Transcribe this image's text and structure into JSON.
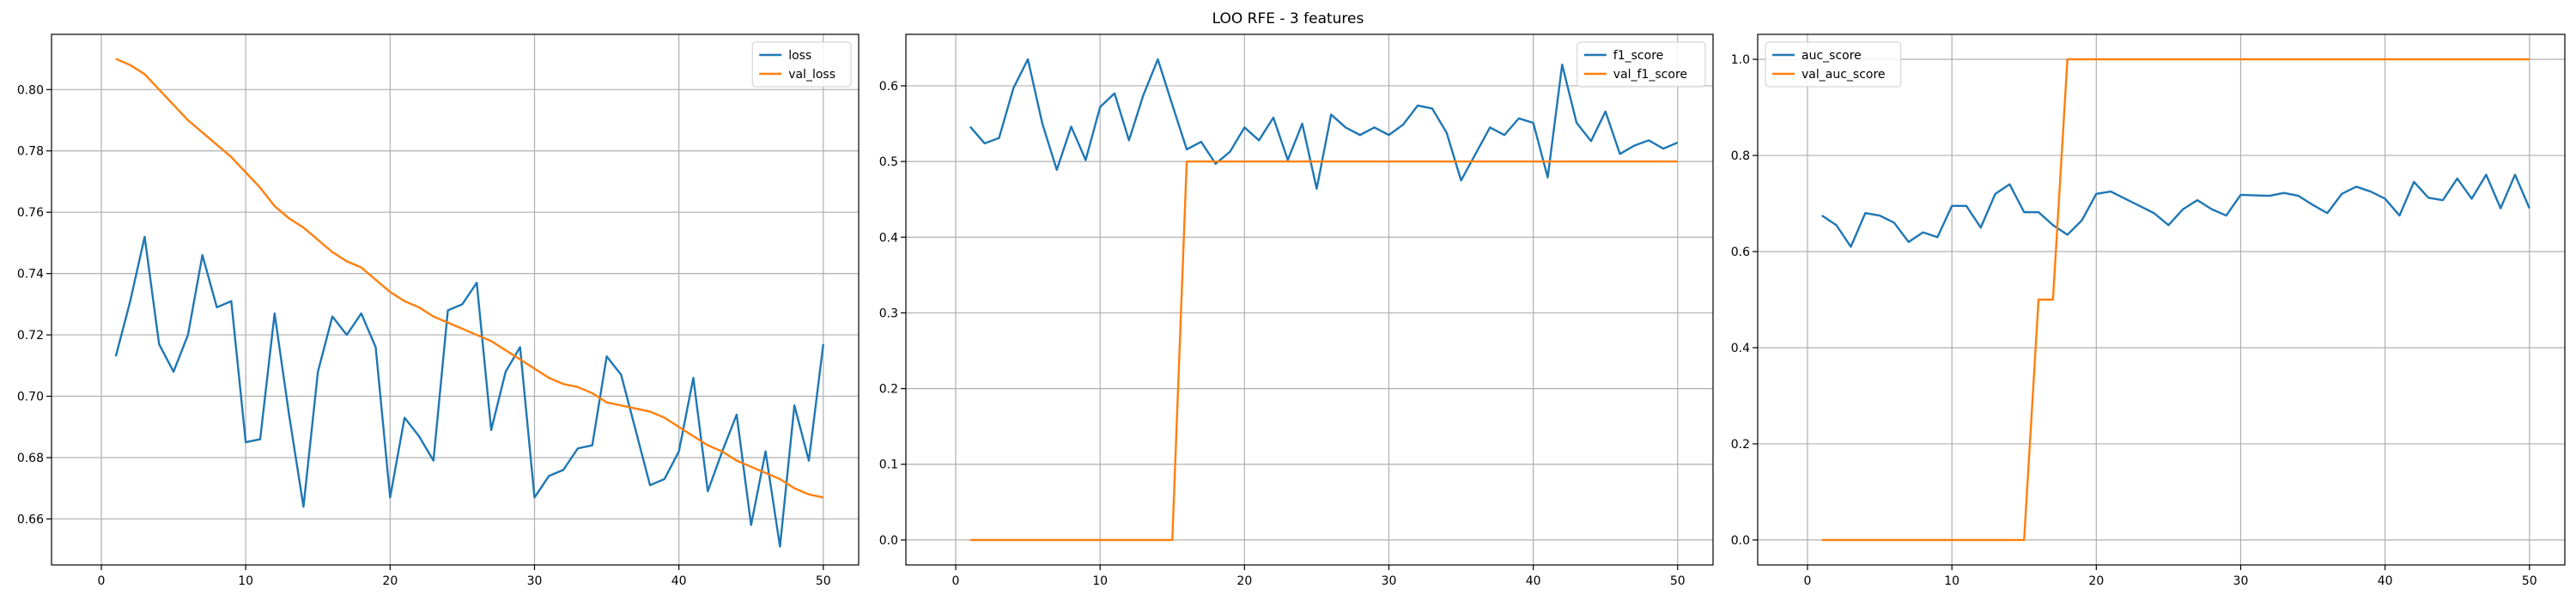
{
  "figure_title": "LOO RFE - 3 features",
  "colors": {
    "blue": "#1f77b4",
    "orange": "#ff7f0e",
    "grid": "#b0b0b0"
  },
  "chart_data": [
    {
      "type": "line",
      "grid": true,
      "legend": "top-right",
      "xlim": [
        -3.45,
        52.45
      ],
      "ylim": [
        0.645,
        0.818
      ],
      "xticks": [
        0,
        10,
        20,
        30,
        40,
        50
      ],
      "yticks": [
        0.66,
        0.68,
        0.7,
        0.72,
        0.74,
        0.76,
        0.78,
        0.8
      ],
      "ytick_labels": [
        "0.66",
        "0.68",
        "0.70",
        "0.72",
        "0.74",
        "0.76",
        "0.78",
        "0.80"
      ],
      "x": [
        1,
        2,
        3,
        4,
        5,
        6,
        7,
        8,
        9,
        10,
        11,
        12,
        13,
        14,
        15,
        16,
        17,
        18,
        19,
        20,
        21,
        22,
        23,
        24,
        25,
        26,
        27,
        28,
        29,
        30,
        31,
        32,
        33,
        34,
        35,
        36,
        37,
        38,
        39,
        40,
        41,
        42,
        43,
        44,
        45,
        46,
        47,
        48,
        49,
        50
      ],
      "series": [
        {
          "name": "loss",
          "color": "#1f77b4",
          "values": [
            0.713,
            0.731,
            0.752,
            0.717,
            0.708,
            0.72,
            0.746,
            0.729,
            0.731,
            0.685,
            0.686,
            0.727,
            0.694,
            0.664,
            0.708,
            0.726,
            0.72,
            0.727,
            0.716,
            0.667,
            0.693,
            0.687,
            0.679,
            0.728,
            0.73,
            0.737,
            0.689,
            0.708,
            0.716,
            0.667,
            0.674,
            0.676,
            0.683,
            0.684,
            0.713,
            0.707,
            0.689,
            0.671,
            0.673,
            0.682,
            0.706,
            0.669,
            0.682,
            0.694,
            0.658,
            0.682,
            0.651,
            0.697,
            0.679,
            0.717
          ]
        },
        {
          "name": "val_loss",
          "color": "#ff7f0e",
          "values": [
            0.81,
            0.808,
            0.805,
            0.8,
            0.795,
            0.79,
            0.786,
            0.782,
            0.778,
            0.773,
            0.768,
            0.762,
            0.758,
            0.755,
            0.751,
            0.747,
            0.744,
            0.742,
            0.738,
            0.734,
            0.731,
            0.729,
            0.726,
            0.724,
            0.722,
            0.72,
            0.718,
            0.715,
            0.712,
            0.709,
            0.706,
            0.704,
            0.703,
            0.701,
            0.698,
            0.697,
            0.696,
            0.695,
            0.693,
            0.69,
            0.687,
            0.684,
            0.682,
            0.679,
            0.677,
            0.675,
            0.673,
            0.67,
            0.668,
            0.667
          ]
        }
      ]
    },
    {
      "type": "line",
      "grid": true,
      "legend": "top-right",
      "xlim": [
        -3.45,
        52.45
      ],
      "ylim": [
        -0.033,
        0.668
      ],
      "xticks": [
        0,
        10,
        20,
        30,
        40,
        50
      ],
      "yticks": [
        0.0,
        0.1,
        0.2,
        0.3,
        0.4,
        0.5,
        0.6
      ],
      "ytick_labels": [
        "0.0",
        "0.1",
        "0.2",
        "0.3",
        "0.4",
        "0.5",
        "0.6"
      ],
      "x": [
        1,
        2,
        3,
        4,
        5,
        6,
        7,
        8,
        9,
        10,
        11,
        12,
        13,
        14,
        15,
        16,
        17,
        18,
        19,
        20,
        21,
        22,
        23,
        24,
        25,
        26,
        27,
        28,
        29,
        30,
        31,
        32,
        33,
        34,
        35,
        36,
        37,
        38,
        39,
        40,
        41,
        42,
        43,
        44,
        45,
        46,
        47,
        48,
        49,
        50
      ],
      "series": [
        {
          "name": "f1_score",
          "color": "#1f77b4",
          "values": [
            0.546,
            0.524,
            0.531,
            0.597,
            0.635,
            0.55,
            0.489,
            0.546,
            0.502,
            0.572,
            0.59,
            0.528,
            0.588,
            0.635,
            0.575,
            0.516,
            0.526,
            0.497,
            0.513,
            0.545,
            0.528,
            0.558,
            0.502,
            0.55,
            0.464,
            0.562,
            0.545,
            0.535,
            0.545,
            0.535,
            0.549,
            0.574,
            0.57,
            0.538,
            0.475,
            0.51,
            0.545,
            0.535,
            0.557,
            0.551,
            0.479,
            0.628,
            0.551,
            0.527,
            0.566,
            0.51,
            0.521,
            0.528,
            0.517,
            0.525
          ]
        },
        {
          "name": "val_f1_score",
          "color": "#ff7f0e",
          "values": [
            0,
            0,
            0,
            0,
            0,
            0,
            0,
            0,
            0,
            0,
            0,
            0,
            0,
            0,
            0,
            0.5,
            0.5,
            0.5,
            0.5,
            0.5,
            0.5,
            0.5,
            0.5,
            0.5,
            0.5,
            0.5,
            0.5,
            0.5,
            0.5,
            0.5,
            0.5,
            0.5,
            0.5,
            0.5,
            0.5,
            0.5,
            0.5,
            0.5,
            0.5,
            0.5,
            0.5,
            0.5,
            0.5,
            0.5,
            0.5,
            0.5,
            0.5,
            0.5,
            0.5,
            0.5
          ]
        }
      ]
    },
    {
      "type": "line",
      "grid": true,
      "legend": "top-left",
      "xlim": [
        -3.45,
        52.45
      ],
      "ylim": [
        -0.052,
        1.052
      ],
      "xticks": [
        0,
        10,
        20,
        30,
        40,
        50
      ],
      "yticks": [
        0.0,
        0.2,
        0.4,
        0.6,
        0.8,
        1.0
      ],
      "ytick_labels": [
        "0.0",
        "0.2",
        "0.4",
        "0.6",
        "0.8",
        "1.0"
      ],
      "x": [
        1,
        2,
        3,
        4,
        5,
        6,
        7,
        8,
        9,
        10,
        11,
        12,
        13,
        14,
        15,
        16,
        17,
        18,
        19,
        20,
        21,
        22,
        23,
        24,
        25,
        26,
        27,
        28,
        29,
        30,
        31,
        32,
        33,
        34,
        35,
        36,
        37,
        38,
        39,
        40,
        41,
        42,
        43,
        44,
        45,
        46,
        47,
        48,
        49,
        50
      ],
      "series": [
        {
          "name": "auc_score",
          "color": "#1f77b4",
          "values": [
            0.675,
            0.655,
            0.61,
            0.68,
            0.675,
            0.66,
            0.62,
            0.64,
            0.63,
            0.695,
            0.695,
            0.65,
            0.72,
            0.74,
            0.682,
            0.682,
            0.655,
            0.635,
            0.665,
            0.72,
            0.725,
            0.71,
            0.695,
            0.68,
            0.655,
            0.688,
            0.707,
            0.688,
            0.675,
            0.718,
            0.717,
            0.716,
            0.722,
            0.716,
            0.697,
            0.68,
            0.72,
            0.735,
            0.725,
            0.71,
            0.675,
            0.745,
            0.712,
            0.707,
            0.752,
            0.71,
            0.76,
            0.69,
            0.76,
            0.69
          ]
        },
        {
          "name": "val_auc_score",
          "color": "#ff7f0e",
          "values": [
            0,
            0,
            0,
            0,
            0,
            0,
            0,
            0,
            0,
            0,
            0,
            0,
            0,
            0,
            0,
            0.5,
            0.5,
            1.0,
            1.0,
            1.0,
            1.0,
            1.0,
            1.0,
            1.0,
            1.0,
            1.0,
            1.0,
            1.0,
            1.0,
            1.0,
            1.0,
            1.0,
            1.0,
            1.0,
            1.0,
            1.0,
            1.0,
            1.0,
            1.0,
            1.0,
            1.0,
            1.0,
            1.0,
            1.0,
            1.0,
            1.0,
            1.0,
            1.0,
            1.0,
            1.0
          ]
        }
      ]
    }
  ]
}
